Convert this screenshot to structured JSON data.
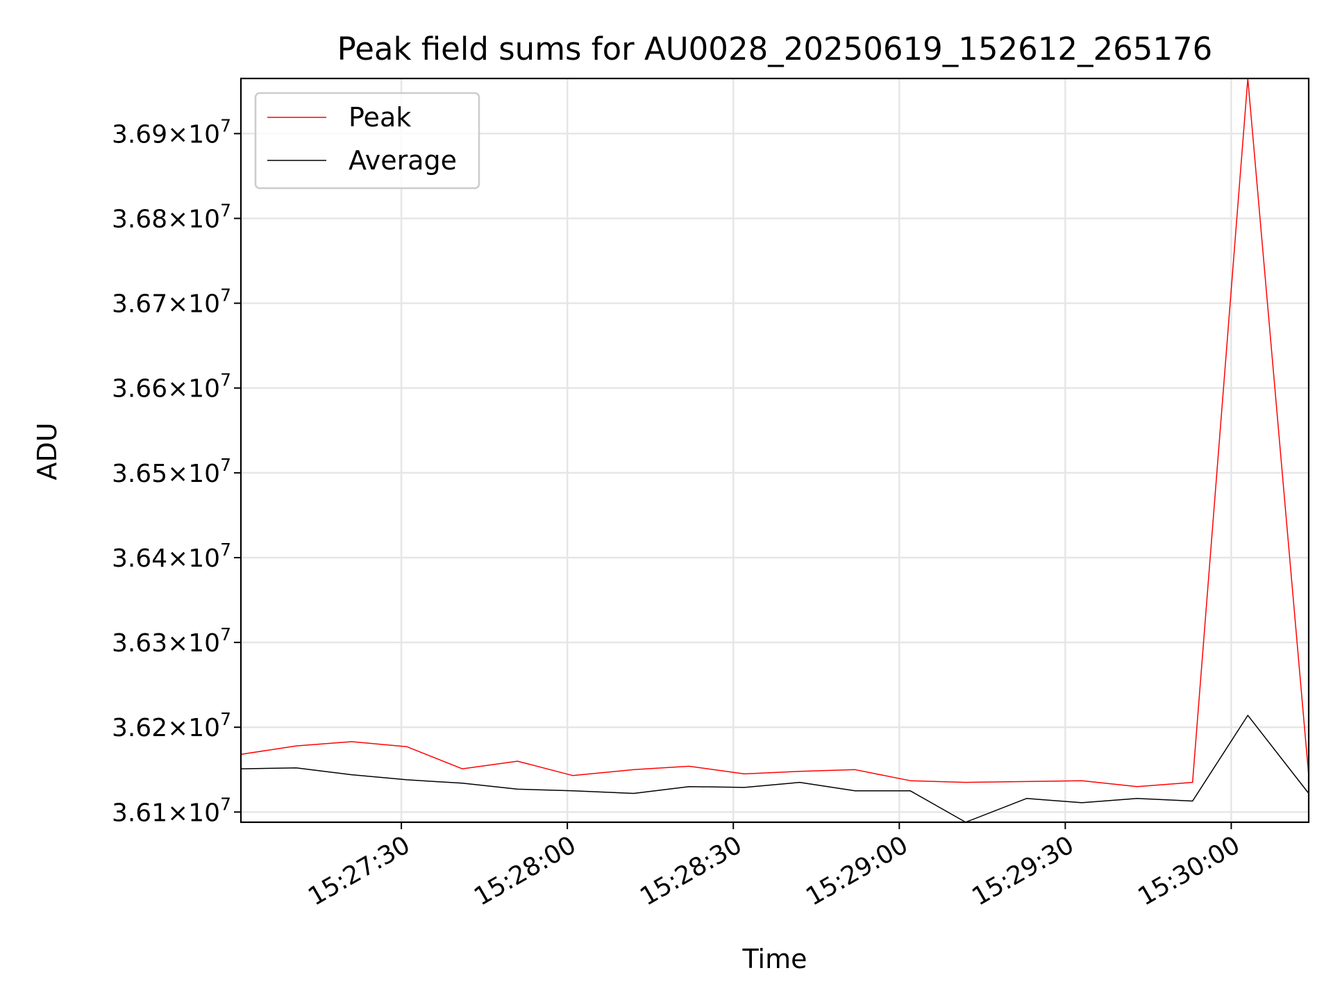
{
  "chart_data": {
    "type": "line",
    "title": "Peak field sums for AU0028_20250619_152612_265176",
    "xlabel": "Time",
    "ylabel": "ADU",
    "x_ticks": [
      "15:27:30",
      "15:28:00",
      "15:28:30",
      "15:29:00",
      "15:29:30",
      "15:30:00"
    ],
    "y_ticks": [
      {
        "value": 36100000,
        "mantissa": "3.61",
        "exponent": "7"
      },
      {
        "value": 36200000,
        "mantissa": "3.62",
        "exponent": "7"
      },
      {
        "value": 36300000,
        "mantissa": "3.63",
        "exponent": "7"
      },
      {
        "value": 36400000,
        "mantissa": "3.64",
        "exponent": "7"
      },
      {
        "value": 36500000,
        "mantissa": "3.65",
        "exponent": "7"
      },
      {
        "value": 36600000,
        "mantissa": "3.66",
        "exponent": "7"
      },
      {
        "value": 36700000,
        "mantissa": "3.67",
        "exponent": "7"
      },
      {
        "value": 36800000,
        "mantissa": "3.68",
        "exponent": "7"
      },
      {
        "value": 36900000,
        "mantissa": "3.69",
        "exponent": "7"
      }
    ],
    "xlim": [
      "15:27:01",
      "15:30:14"
    ],
    "ylim": [
      36088000,
      36965000
    ],
    "grid": true,
    "legend_position": "top-left",
    "x": [
      "15:27:01",
      "15:27:11",
      "15:27:21",
      "15:27:31",
      "15:27:41",
      "15:27:51",
      "15:28:01",
      "15:28:12",
      "15:28:22",
      "15:28:32",
      "15:28:42",
      "15:28:52",
      "15:29:02",
      "15:29:12",
      "15:29:23",
      "15:29:33",
      "15:29:43",
      "15:29:53",
      "15:30:03",
      "15:30:14"
    ],
    "series": [
      {
        "name": "Peak",
        "color": "#ff0000",
        "values": [
          36168000,
          36178000,
          36183000,
          36177000,
          36151000,
          36160000,
          36143000,
          36150000,
          36154000,
          36145000,
          36148000,
          36150000,
          36137000,
          36135000,
          36136000,
          36137000,
          36130000,
          36135000,
          36965000,
          36143000
        ]
      },
      {
        "name": "Average",
        "color": "#000000",
        "values": [
          36151000,
          36152000,
          36144000,
          36138000,
          36134000,
          36127000,
          36125000,
          36122000,
          36130000,
          36129000,
          36135000,
          36125000,
          36125000,
          36088000,
          36116000,
          36111000,
          36116000,
          36113000,
          36214000,
          36122000
        ]
      }
    ]
  }
}
